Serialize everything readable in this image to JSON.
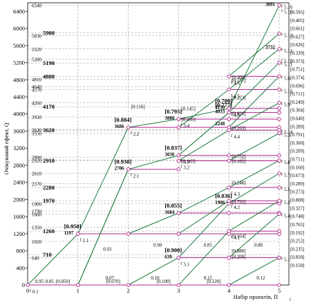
{
  "axes": {
    "x_label": "Набір проектів, Π",
    "x_label_sub": "i",
    "y_label": "Очікуваний ефект, Q",
    "x_ticks": [
      "0",
      "1",
      "2",
      "3",
      "4",
      "5"
    ],
    "y_ticks": [
      "0",
      "400",
      "800",
      "1200",
      "1600",
      "2000",
      "2400",
      "2800",
      "3200",
      "3600",
      "4000",
      "4400",
      "4800",
      "5200",
      "5600",
      "6000",
      "6400"
    ]
  },
  "colors": {
    "green": "#1a7a3a",
    "magenta": "#b0218c",
    "grid": "#999999",
    "text": "#000000"
  },
  "left_values": [
    {
      "q": 6540,
      "text": "6540",
      "style": "it"
    },
    {
      "q": 5830,
      "text": "5830",
      "style": "small"
    },
    {
      "q": 5900,
      "text": "5900",
      "style": "bold"
    },
    {
      "q": 5520,
      "text": "5520",
      "style": "it"
    },
    {
      "q": 5190,
      "text": "5190",
      "style": "bold"
    },
    {
      "q": 5280,
      "text": "5280",
      "style": "small"
    },
    {
      "q": 4880,
      "text": "4880",
      "style": "bold"
    },
    {
      "q": 4810,
      "text": "4810",
      "style": "small"
    },
    {
      "q": 4640,
      "text": "4640",
      "style": "small"
    },
    {
      "q": 4570,
      "text": "4570",
      "style": "small"
    },
    {
      "q": 4260,
      "text": "4260",
      "style": "small"
    },
    {
      "q": 4170,
      "text": "4170",
      "style": "bold"
    },
    {
      "q": 3930,
      "text": "3930",
      "style": "it"
    },
    {
      "q": 3630,
      "text": "3630",
      "style": "small"
    },
    {
      "q": 3620,
      "text": "3620",
      "style": "bold"
    },
    {
      "q": 3550,
      "text": "3550",
      "style": "small"
    },
    {
      "q": 2990,
      "text": "2990",
      "style": "it"
    },
    {
      "q": 2920,
      "text": "2920",
      "style": "small"
    },
    {
      "q": 2910,
      "text": "2910",
      "style": "bold"
    },
    {
      "q": 2610,
      "text": "2610",
      "style": "small"
    },
    {
      "q": 2370,
      "text": "2370",
      "style": "small"
    },
    {
      "q": 2280,
      "text": "2280",
      "style": "bold"
    },
    {
      "q": 1970,
      "text": "1970",
      "style": "bold"
    },
    {
      "q": 1900,
      "text": "1900",
      "style": "small"
    },
    {
      "q": 1730,
      "text": "1730",
      "style": "small"
    },
    {
      "q": 1660,
      "text": "1660",
      "style": "small"
    },
    {
      "q": 1350,
      "text": "1350",
      "style": "small"
    },
    {
      "q": 1260,
      "text": "1260",
      "style": "bold"
    },
    {
      "q": 1020,
      "text": "1020",
      "style": "small"
    },
    {
      "q": 710,
      "text": "710",
      "style": "bold"
    },
    {
      "q": 640,
      "text": "640",
      "style": "small"
    }
  ],
  "right_values": [
    "[0.595]",
    "[0.405]",
    "[0.661]",
    "[0.627]",
    "[0.626]",
    "[0.339]",
    "[0.373]",
    "[0.751]",
    "[0.374]",
    "[0.696]",
    "[0.711]",
    "[0.249]",
    "[0.304]",
    "[0.640]",
    "[0.289]",
    "[0.791]",
    "[0.360]",
    "[0.209]",
    "[0.711]",
    "[0.160]",
    "[0.673]",
    "[0.289]",
    "[0.273]",
    "[0.808]",
    "[0.327]",
    "[0.748]",
    "[0.765]",
    "[0.192]",
    "[0.252]",
    "[0.235]",
    "[0.850]",
    "[0.150]"
  ],
  "nodes": [
    {
      "id": "t01",
      "label": "t",
      "sub": "0.1",
      "x": 0,
      "q": 0
    },
    {
      "id": "t11",
      "label": "t",
      "sub": "1.1",
      "x": 1,
      "q": 1197
    },
    {
      "id": "t21",
      "label": "t",
      "sub": "2.1",
      "x": 2,
      "q": 2706
    },
    {
      "id": "t22",
      "label": "t",
      "sub": "2.2",
      "x": 2,
      "q": 3686
    },
    {
      "id": "t31",
      "label": "t",
      "sub": "3.1",
      "x": 3,
      "q": 639
    },
    {
      "id": "t33",
      "label": "t",
      "sub": "3.3",
      "x": 3,
      "q": 3030
    },
    {
      "id": "t34",
      "label": "t",
      "sub": "3.4",
      "x": 3,
      "q": 3880
    },
    {
      "id": "t48",
      "label": "t",
      "sub": "4.8",
      "x": 4,
      "q": 4130
    },
    {
      "id": "t516",
      "label": "t",
      "sub": "5.16",
      "x": 5,
      "q": 6540
    }
  ],
  "node_labels": [
    {
      "prob": "[0.950]",
      "value": "1197",
      "x": 1,
      "q": 1197
    },
    {
      "prob": "[0.930]",
      "value": "2706",
      "x": 2,
      "q": 2706
    },
    {
      "prob": "[0.884]",
      "value": "3686",
      "x": 2,
      "q": 3686
    },
    {
      "prob": "[0.900]",
      "value": "639",
      "x": 3,
      "q": 639
    },
    {
      "prob": "[0.855]",
      "value": "1684",
      "x": 3,
      "q": 1684
    },
    {
      "prob": "[0.837]",
      "value": "3030",
      "x": 3,
      "q": 3030
    },
    {
      "prob": "[0.795]",
      "value": "3880",
      "x": 3,
      "q": 3880
    },
    {
      "prob": "[0.836]",
      "value": "1906",
      "x": 4,
      "q": 1906
    },
    {
      "prob": "[0.777]",
      "value": "4033",
      "x": 4,
      "q": 4033
    },
    {
      "prob": "[0.700]",
      "value": "4130",
      "x": 4,
      "q": 4130
    },
    {
      "prob": "",
      "value": "3891",
      "x": 5,
      "q": 6540
    },
    {
      "prob": "",
      "value": "3732",
      "x": 5,
      "q": 5540
    },
    {
      "prob": "",
      "value": "2248",
      "x": 4,
      "q": 3750
    }
  ],
  "bottom_probs": [
    {
      "x": 1,
      "text": "[0.050]"
    },
    {
      "x": 2,
      "text": "[0.070]"
    },
    {
      "x": 3,
      "text": "[0.100]"
    },
    {
      "x": 4,
      "text": "[0.120]"
    }
  ],
  "side_probs": [
    {
      "x": 2,
      "q": 4180,
      "text": "[0.116]"
    },
    {
      "x": 3,
      "q": 4130,
      "text": "[0.145]"
    },
    {
      "x": 3,
      "q": 3880,
      "text": "[0.205]"
    },
    {
      "x": 3,
      "q": 2906,
      "text": "[0.163]"
    },
    {
      "x": 4,
      "q": 4870,
      "text": "[0.300]"
    },
    {
      "x": 4,
      "q": 4800,
      "text": "[0.737]"
    },
    {
      "x": 4,
      "q": 4390,
      "text": "[0.223]"
    },
    {
      "x": 4,
      "q": 4020,
      "text": "[0.818]"
    },
    {
      "x": 4,
      "q": 3680,
      "text": "[0.263]"
    },
    {
      "x": 4,
      "q": 3020,
      "text": "[0.752]"
    },
    {
      "x": 4,
      "q": 2900,
      "text": "[0.182]"
    },
    {
      "x": 4,
      "q": 2400,
      "text": "[0.248]"
    },
    {
      "x": 4,
      "q": 1960,
      "text": "[0.792]"
    },
    {
      "x": 4,
      "q": 1160,
      "text": "[0.164]"
    },
    {
      "x": 4,
      "q": 810,
      "text": "[0.880]"
    },
    {
      "x": 4,
      "q": 670,
      "text": "[0.208]"
    }
  ],
  "edge_probs": [
    "0.95",
    "0.05",
    "0.93",
    "0.07",
    "0.90",
    "0.10",
    "0.85",
    "0.15",
    "0.88",
    "0.12"
  ],
  "right_nodes": [
    {
      "label": "t",
      "sub": "5.16",
      "q": 6540
    },
    {
      "label": "t",
      "sub": "5.13",
      "q": 5880
    },
    {
      "label": "t",
      "sub": "5.12",
      "q": 5520
    },
    {
      "label": "t",
      "sub": "5.15",
      "q": 5280
    },
    {
      "label": "t",
      "sub": "5.11",
      "q": 5200
    },
    {
      "label": "t",
      "sub": "5.6",
      "q": 4880
    },
    {
      "label": "t",
      "sub": "5.10",
      "q": 4570
    },
    {
      "label": "t",
      "sub": "5.9",
      "q": 4260
    },
    {
      "label": "t",
      "sub": "5.14",
      "q": 3620
    },
    {
      "label": "t",
      "sub": "5.3",
      "q": 3550
    },
    {
      "label": "t",
      "sub": "5.8",
      "q": 2910
    },
    {
      "label": "t",
      "sub": "5.7",
      "q": 2610
    },
    {
      "label": "t",
      "sub": "5.5",
      "q": 2280
    },
    {
      "label": "t",
      "sub": "5.2",
      "q": 1970
    },
    {
      "label": "t",
      "sub": "5.4",
      "q": 1660
    },
    {
      "label": "t",
      "sub": "5.1",
      "q": 640
    }
  ],
  "mid_nodes": [
    {
      "label": "t",
      "sub": "4.6",
      "x": 4,
      "q": 4880
    },
    {
      "label": "t",
      "sub": "4.5",
      "x": 4,
      "q": 4570
    },
    {
      "label": "t",
      "sub": "4.4",
      "x": 4,
      "q": 3620
    },
    {
      "label": "t",
      "sub": "4.3",
      "x": 4,
      "q": 2280
    },
    {
      "label": "t",
      "sub": "4.2",
      "x": 4,
      "q": 1970
    },
    {
      "label": "t",
      "sub": "4.1",
      "x": 4,
      "q": 1260
    },
    {
      "label": "t",
      "sub": "3.2",
      "x": 3,
      "q": 2906
    }
  ]
}
